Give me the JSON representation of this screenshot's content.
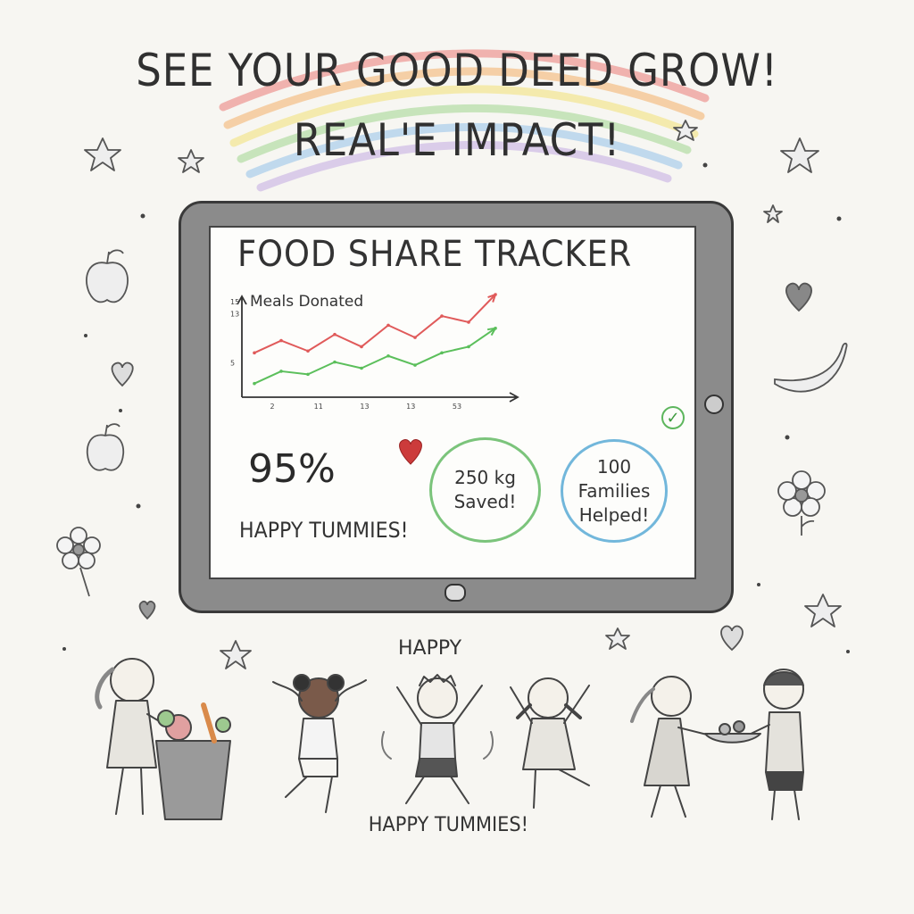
{
  "headline": {
    "line1": "SEE YOUR GOOD DEED GROW!",
    "line2": "REAL'E IMPACT!"
  },
  "tracker": {
    "title": "FOOD SHARE TRACKER",
    "happy_percent": "95%",
    "happy_label": "HAPPY TUMMIES!",
    "stat_kg_value": "250 kg",
    "stat_kg_label": "Saved!",
    "stat_families_value": "100",
    "stat_families_label_1": "Families",
    "stat_families_label_2": "Helped!"
  },
  "chart_data": {
    "type": "line",
    "ylabel": "Meals Donated",
    "xlabel": "",
    "x_ticks": [
      "2",
      "11",
      "13",
      "13",
      "53"
    ],
    "y_ticks": [
      "15",
      "13",
      "5"
    ],
    "series": [
      {
        "color": "#e05a5a",
        "values": [
          6.5,
          8.5,
          6.8,
          9.5,
          7.5,
          11,
          9,
          12.5,
          11.5,
          16
        ]
      },
      {
        "color": "#5bbf5b",
        "values": [
          1.5,
          3.5,
          3,
          5,
          4,
          6,
          4.5,
          6.5,
          7.5,
          10.5
        ]
      }
    ],
    "ylim": [
      0,
      16
    ]
  },
  "illustration": {
    "happy_top": "HAPPY",
    "happy_bottom": "HAPPY TUMMIES!"
  },
  "colors": {
    "red_line": "#e05a5a",
    "green_line": "#5bbf5b",
    "green_circle": "#7bc47b",
    "blue_circle": "#72b7db",
    "heart": "#cc3b3b"
  }
}
